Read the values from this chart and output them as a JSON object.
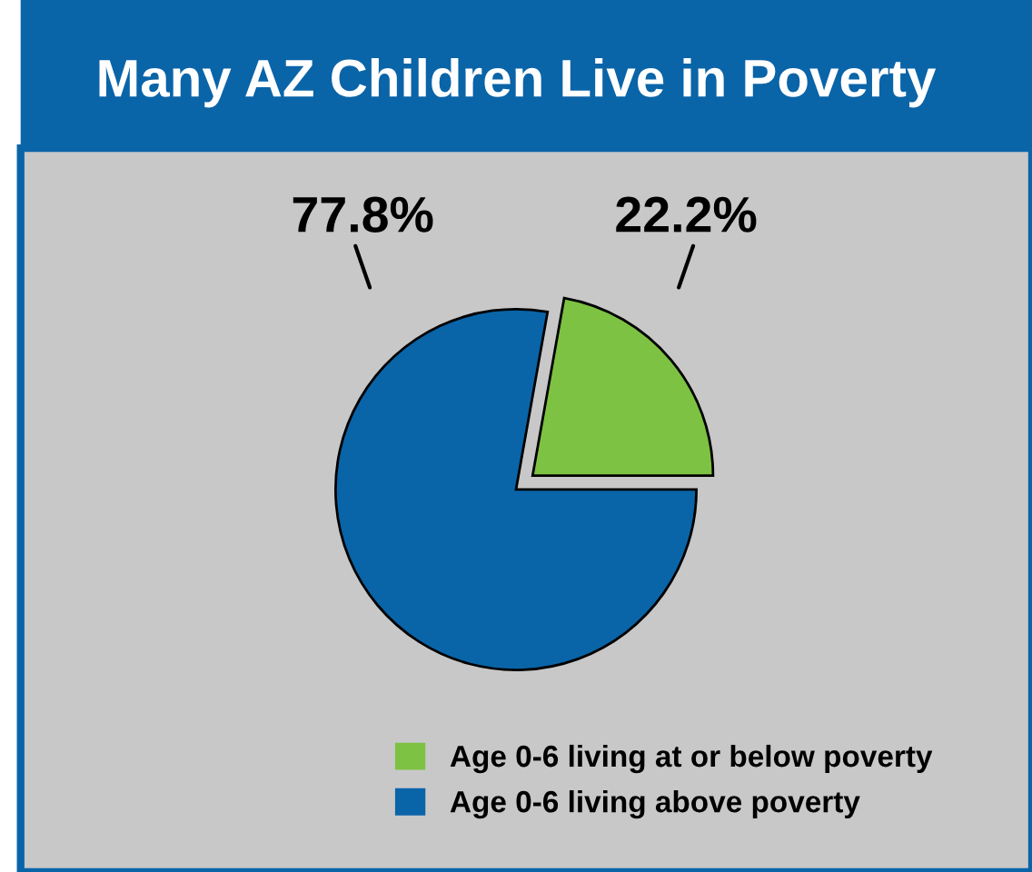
{
  "chart_data": {
    "type": "pie",
    "title": "Many AZ Children Live in Poverty",
    "categories": [
      "Age 0-6 living at or below poverty",
      "Age 0-6 living above poverty"
    ],
    "values": [
      22.2,
      77.8
    ],
    "value_labels": [
      "22.2%",
      "77.8%"
    ],
    "colors": [
      "#7dc242",
      "#0a64a8"
    ],
    "legend": "bottom right"
  }
}
